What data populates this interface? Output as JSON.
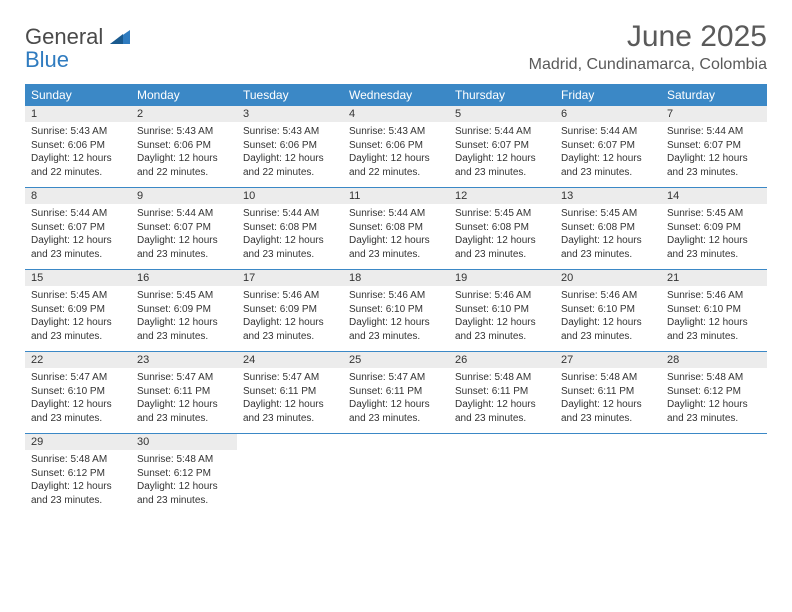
{
  "logo": {
    "text1": "General",
    "text2": "Blue"
  },
  "title": "June 2025",
  "location": "Madrid, Cundinamarca, Colombia",
  "colors": {
    "header_bg": "#3b88c6",
    "header_text": "#ffffff",
    "daynum_bg": "#ececec",
    "text": "#333333",
    "logo_gray": "#4a4a4a",
    "logo_blue": "#2f7bbf",
    "page_bg": "#ffffff"
  },
  "typography": {
    "title_fontsize": 30,
    "location_fontsize": 16,
    "dayheader_fontsize": 12,
    "daynum_fontsize": 11,
    "details_fontsize": 10
  },
  "day_headers": [
    "Sunday",
    "Monday",
    "Tuesday",
    "Wednesday",
    "Thursday",
    "Friday",
    "Saturday"
  ],
  "weeks": [
    [
      {
        "n": "1",
        "sr": "Sunrise: 5:43 AM",
        "ss": "Sunset: 6:06 PM",
        "d1": "Daylight: 12 hours",
        "d2": "and 22 minutes."
      },
      {
        "n": "2",
        "sr": "Sunrise: 5:43 AM",
        "ss": "Sunset: 6:06 PM",
        "d1": "Daylight: 12 hours",
        "d2": "and 22 minutes."
      },
      {
        "n": "3",
        "sr": "Sunrise: 5:43 AM",
        "ss": "Sunset: 6:06 PM",
        "d1": "Daylight: 12 hours",
        "d2": "and 22 minutes."
      },
      {
        "n": "4",
        "sr": "Sunrise: 5:43 AM",
        "ss": "Sunset: 6:06 PM",
        "d1": "Daylight: 12 hours",
        "d2": "and 22 minutes."
      },
      {
        "n": "5",
        "sr": "Sunrise: 5:44 AM",
        "ss": "Sunset: 6:07 PM",
        "d1": "Daylight: 12 hours",
        "d2": "and 23 minutes."
      },
      {
        "n": "6",
        "sr": "Sunrise: 5:44 AM",
        "ss": "Sunset: 6:07 PM",
        "d1": "Daylight: 12 hours",
        "d2": "and 23 minutes."
      },
      {
        "n": "7",
        "sr": "Sunrise: 5:44 AM",
        "ss": "Sunset: 6:07 PM",
        "d1": "Daylight: 12 hours",
        "d2": "and 23 minutes."
      }
    ],
    [
      {
        "n": "8",
        "sr": "Sunrise: 5:44 AM",
        "ss": "Sunset: 6:07 PM",
        "d1": "Daylight: 12 hours",
        "d2": "and 23 minutes."
      },
      {
        "n": "9",
        "sr": "Sunrise: 5:44 AM",
        "ss": "Sunset: 6:07 PM",
        "d1": "Daylight: 12 hours",
        "d2": "and 23 minutes."
      },
      {
        "n": "10",
        "sr": "Sunrise: 5:44 AM",
        "ss": "Sunset: 6:08 PM",
        "d1": "Daylight: 12 hours",
        "d2": "and 23 minutes."
      },
      {
        "n": "11",
        "sr": "Sunrise: 5:44 AM",
        "ss": "Sunset: 6:08 PM",
        "d1": "Daylight: 12 hours",
        "d2": "and 23 minutes."
      },
      {
        "n": "12",
        "sr": "Sunrise: 5:45 AM",
        "ss": "Sunset: 6:08 PM",
        "d1": "Daylight: 12 hours",
        "d2": "and 23 minutes."
      },
      {
        "n": "13",
        "sr": "Sunrise: 5:45 AM",
        "ss": "Sunset: 6:08 PM",
        "d1": "Daylight: 12 hours",
        "d2": "and 23 minutes."
      },
      {
        "n": "14",
        "sr": "Sunrise: 5:45 AM",
        "ss": "Sunset: 6:09 PM",
        "d1": "Daylight: 12 hours",
        "d2": "and 23 minutes."
      }
    ],
    [
      {
        "n": "15",
        "sr": "Sunrise: 5:45 AM",
        "ss": "Sunset: 6:09 PM",
        "d1": "Daylight: 12 hours",
        "d2": "and 23 minutes."
      },
      {
        "n": "16",
        "sr": "Sunrise: 5:45 AM",
        "ss": "Sunset: 6:09 PM",
        "d1": "Daylight: 12 hours",
        "d2": "and 23 minutes."
      },
      {
        "n": "17",
        "sr": "Sunrise: 5:46 AM",
        "ss": "Sunset: 6:09 PM",
        "d1": "Daylight: 12 hours",
        "d2": "and 23 minutes."
      },
      {
        "n": "18",
        "sr": "Sunrise: 5:46 AM",
        "ss": "Sunset: 6:10 PM",
        "d1": "Daylight: 12 hours",
        "d2": "and 23 minutes."
      },
      {
        "n": "19",
        "sr": "Sunrise: 5:46 AM",
        "ss": "Sunset: 6:10 PM",
        "d1": "Daylight: 12 hours",
        "d2": "and 23 minutes."
      },
      {
        "n": "20",
        "sr": "Sunrise: 5:46 AM",
        "ss": "Sunset: 6:10 PM",
        "d1": "Daylight: 12 hours",
        "d2": "and 23 minutes."
      },
      {
        "n": "21",
        "sr": "Sunrise: 5:46 AM",
        "ss": "Sunset: 6:10 PM",
        "d1": "Daylight: 12 hours",
        "d2": "and 23 minutes."
      }
    ],
    [
      {
        "n": "22",
        "sr": "Sunrise: 5:47 AM",
        "ss": "Sunset: 6:10 PM",
        "d1": "Daylight: 12 hours",
        "d2": "and 23 minutes."
      },
      {
        "n": "23",
        "sr": "Sunrise: 5:47 AM",
        "ss": "Sunset: 6:11 PM",
        "d1": "Daylight: 12 hours",
        "d2": "and 23 minutes."
      },
      {
        "n": "24",
        "sr": "Sunrise: 5:47 AM",
        "ss": "Sunset: 6:11 PM",
        "d1": "Daylight: 12 hours",
        "d2": "and 23 minutes."
      },
      {
        "n": "25",
        "sr": "Sunrise: 5:47 AM",
        "ss": "Sunset: 6:11 PM",
        "d1": "Daylight: 12 hours",
        "d2": "and 23 minutes."
      },
      {
        "n": "26",
        "sr": "Sunrise: 5:48 AM",
        "ss": "Sunset: 6:11 PM",
        "d1": "Daylight: 12 hours",
        "d2": "and 23 minutes."
      },
      {
        "n": "27",
        "sr": "Sunrise: 5:48 AM",
        "ss": "Sunset: 6:11 PM",
        "d1": "Daylight: 12 hours",
        "d2": "and 23 minutes."
      },
      {
        "n": "28",
        "sr": "Sunrise: 5:48 AM",
        "ss": "Sunset: 6:12 PM",
        "d1": "Daylight: 12 hours",
        "d2": "and 23 minutes."
      }
    ],
    [
      {
        "n": "29",
        "sr": "Sunrise: 5:48 AM",
        "ss": "Sunset: 6:12 PM",
        "d1": "Daylight: 12 hours",
        "d2": "and 23 minutes."
      },
      {
        "n": "30",
        "sr": "Sunrise: 5:48 AM",
        "ss": "Sunset: 6:12 PM",
        "d1": "Daylight: 12 hours",
        "d2": "and 23 minutes."
      },
      null,
      null,
      null,
      null,
      null
    ]
  ]
}
